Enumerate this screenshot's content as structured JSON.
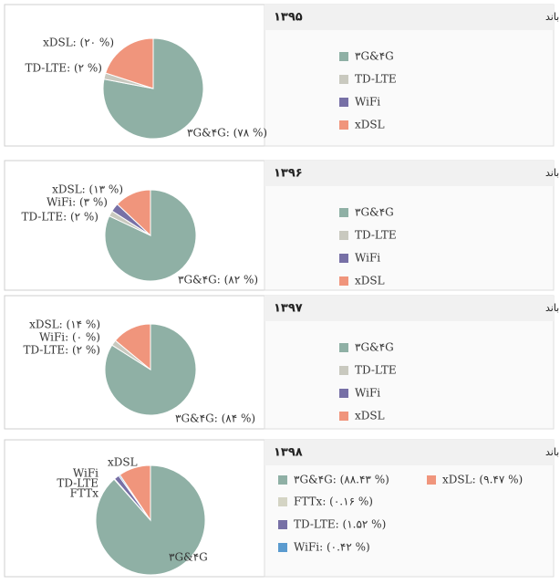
{
  "chart_data": [
    {
      "type": "pie",
      "title": "مقایسه  فناوری های دسترسی  به اینترنت پهن باند",
      "subtitle": "۱۳۹۵",
      "categories": [
        "۳G&۴G",
        "TD-LTE",
        "WiFi",
        "xDSL"
      ],
      "values": [
        78,
        2,
        0,
        20
      ],
      "value_labels": [
        "۳G&۴G: (۷۸ %)",
        "TD-LTE: (۲ %)",
        null,
        "xDSL: (۲۰ %)"
      ],
      "colors": [
        "#8fb0a5",
        "#c9c9bf",
        "#7770a6",
        "#f0957c"
      ],
      "legend_style": "categories"
    },
    {
      "type": "pie",
      "title": "مقایسه  فناوری های دسترسی  به اینترنت پهن باند",
      "subtitle": "۱۳۹۶",
      "categories": [
        "۳G&۴G",
        "TD-LTE",
        "WiFi",
        "xDSL"
      ],
      "values": [
        82,
        2,
        3,
        13
      ],
      "value_labels": [
        "۳G&۴G: (۸۲ %)",
        "TD-LTE: (۲ %)",
        "WiFi: (۳ %)",
        "xDSL: (۱۳ %)"
      ],
      "colors": [
        "#8fb0a5",
        "#c9c9bf",
        "#7770a6",
        "#f0957c"
      ],
      "legend_style": "categories"
    },
    {
      "type": "pie",
      "title": "مقایسه  فناوری های دسترسی  به اینترنت پهن باند",
      "subtitle": "۱۳۹۷",
      "categories": [
        "۳G&۴G",
        "TD-LTE",
        "WiFi",
        "xDSL"
      ],
      "values": [
        84,
        2,
        0,
        14
      ],
      "value_labels": [
        "۳G&۴G: (۸۴ %)",
        "TD-LTE: (۲ %)",
        "WiFi: (۰ %)",
        "xDSL: (۱۴ %)"
      ],
      "colors": [
        "#8fb0a5",
        "#c9c9bf",
        "#7770a6",
        "#f0957c"
      ],
      "legend_style": "categories"
    },
    {
      "type": "pie",
      "title": "مقایسه  فناوری های دسترسی  به اینترنت پهن باند",
      "subtitle": "۱۳۹۸",
      "categories": [
        "۳G&۴G",
        "FTTx",
        "TD-LTE",
        "WiFi",
        "xDSL"
      ],
      "values": [
        88.43,
        0.16,
        1.52,
        0.42,
        9.47
      ],
      "value_labels": [
        "۳G&۴G: (۸۸.۴۳ %)",
        "FTTx: (۰.۱۶ %)",
        "TD-LTE: (۱.۵۲ %)",
        "WiFi: (۰.۴۲ %)",
        "xDSL: (۹.۴۷ %)"
      ],
      "colors": [
        "#8fb0a5",
        "#d4d4c4",
        "#7770a6",
        "#5b9bcf",
        "#f0957c"
      ],
      "legend_style": "value_labels"
    }
  ]
}
